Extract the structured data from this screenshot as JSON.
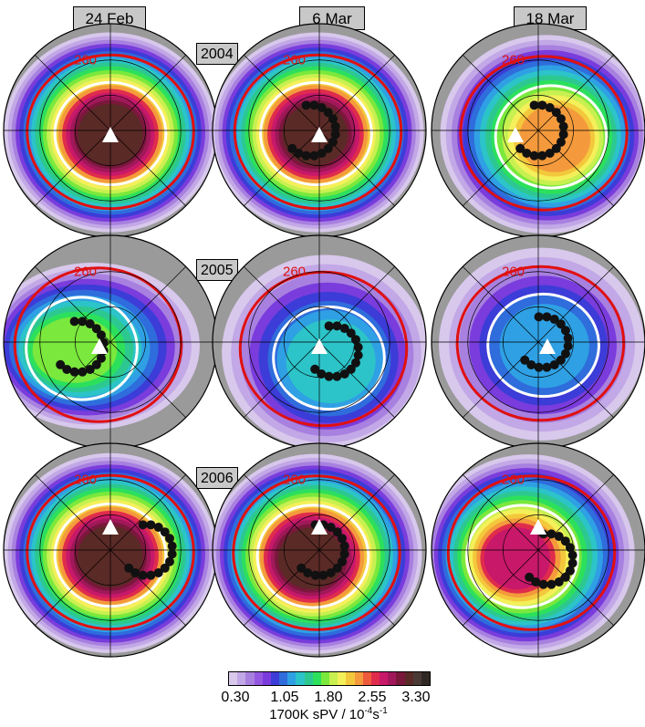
{
  "chart_data": {
    "type": "heatmap",
    "columns": [
      "24 Feb",
      "6 Mar",
      "18 Mar"
    ],
    "rows": [
      "2004",
      "2005",
      "2006"
    ],
    "colorbar": {
      "ticks": [
        "0.30",
        "1.05",
        "1.80",
        "2.55",
        "3.30"
      ],
      "label_main": "1700K sPV / 10",
      "label_exp": "-4",
      "label_unit": "s",
      "label_unit_exp": "-1",
      "colors": [
        "#d8c8ec",
        "#c2a8e6",
        "#a880e0",
        "#9458e0",
        "#7a3cdc",
        "#3c3cd8",
        "#2f6cdc",
        "#2fa0e4",
        "#2cc4c8",
        "#2cc890",
        "#2ce05c",
        "#7ae83c",
        "#c8f050",
        "#f4f05a",
        "#f4c83c",
        "#f49a3c",
        "#ee5a3c",
        "#e02c4c",
        "#c8186a",
        "#a0185a",
        "#7a183c",
        "#5a2a26",
        "#4a3a36",
        "#302824"
      ]
    },
    "contour_label": "260",
    "panels": [
      {
        "row": "2004",
        "col": "24 Feb",
        "peak_sPV": 3.3,
        "vortex": "strong, centered"
      },
      {
        "row": "2004",
        "col": "6 Mar",
        "peak_sPV": 3.3,
        "vortex": "strong, centered"
      },
      {
        "row": "2004",
        "col": "18 Mar",
        "peak_sPV": 2.55,
        "vortex": "weakening, offset"
      },
      {
        "row": "2005",
        "col": "24 Feb",
        "peak_sPV": 2.0,
        "vortex": "displaced, elongated"
      },
      {
        "row": "2005",
        "col": "6 Mar",
        "peak_sPV": 1.5,
        "vortex": "weak"
      },
      {
        "row": "2005",
        "col": "18 Mar",
        "peak_sPV": 1.3,
        "vortex": "weak"
      },
      {
        "row": "2006",
        "col": "24 Feb",
        "peak_sPV": 3.3,
        "vortex": "strong, centered"
      },
      {
        "row": "2006",
        "col": "6 Mar",
        "peak_sPV": 3.3,
        "vortex": "strong, centered"
      },
      {
        "row": "2006",
        "col": "18 Mar",
        "peak_sPV": 2.8,
        "vortex": "strong, offset"
      }
    ]
  }
}
